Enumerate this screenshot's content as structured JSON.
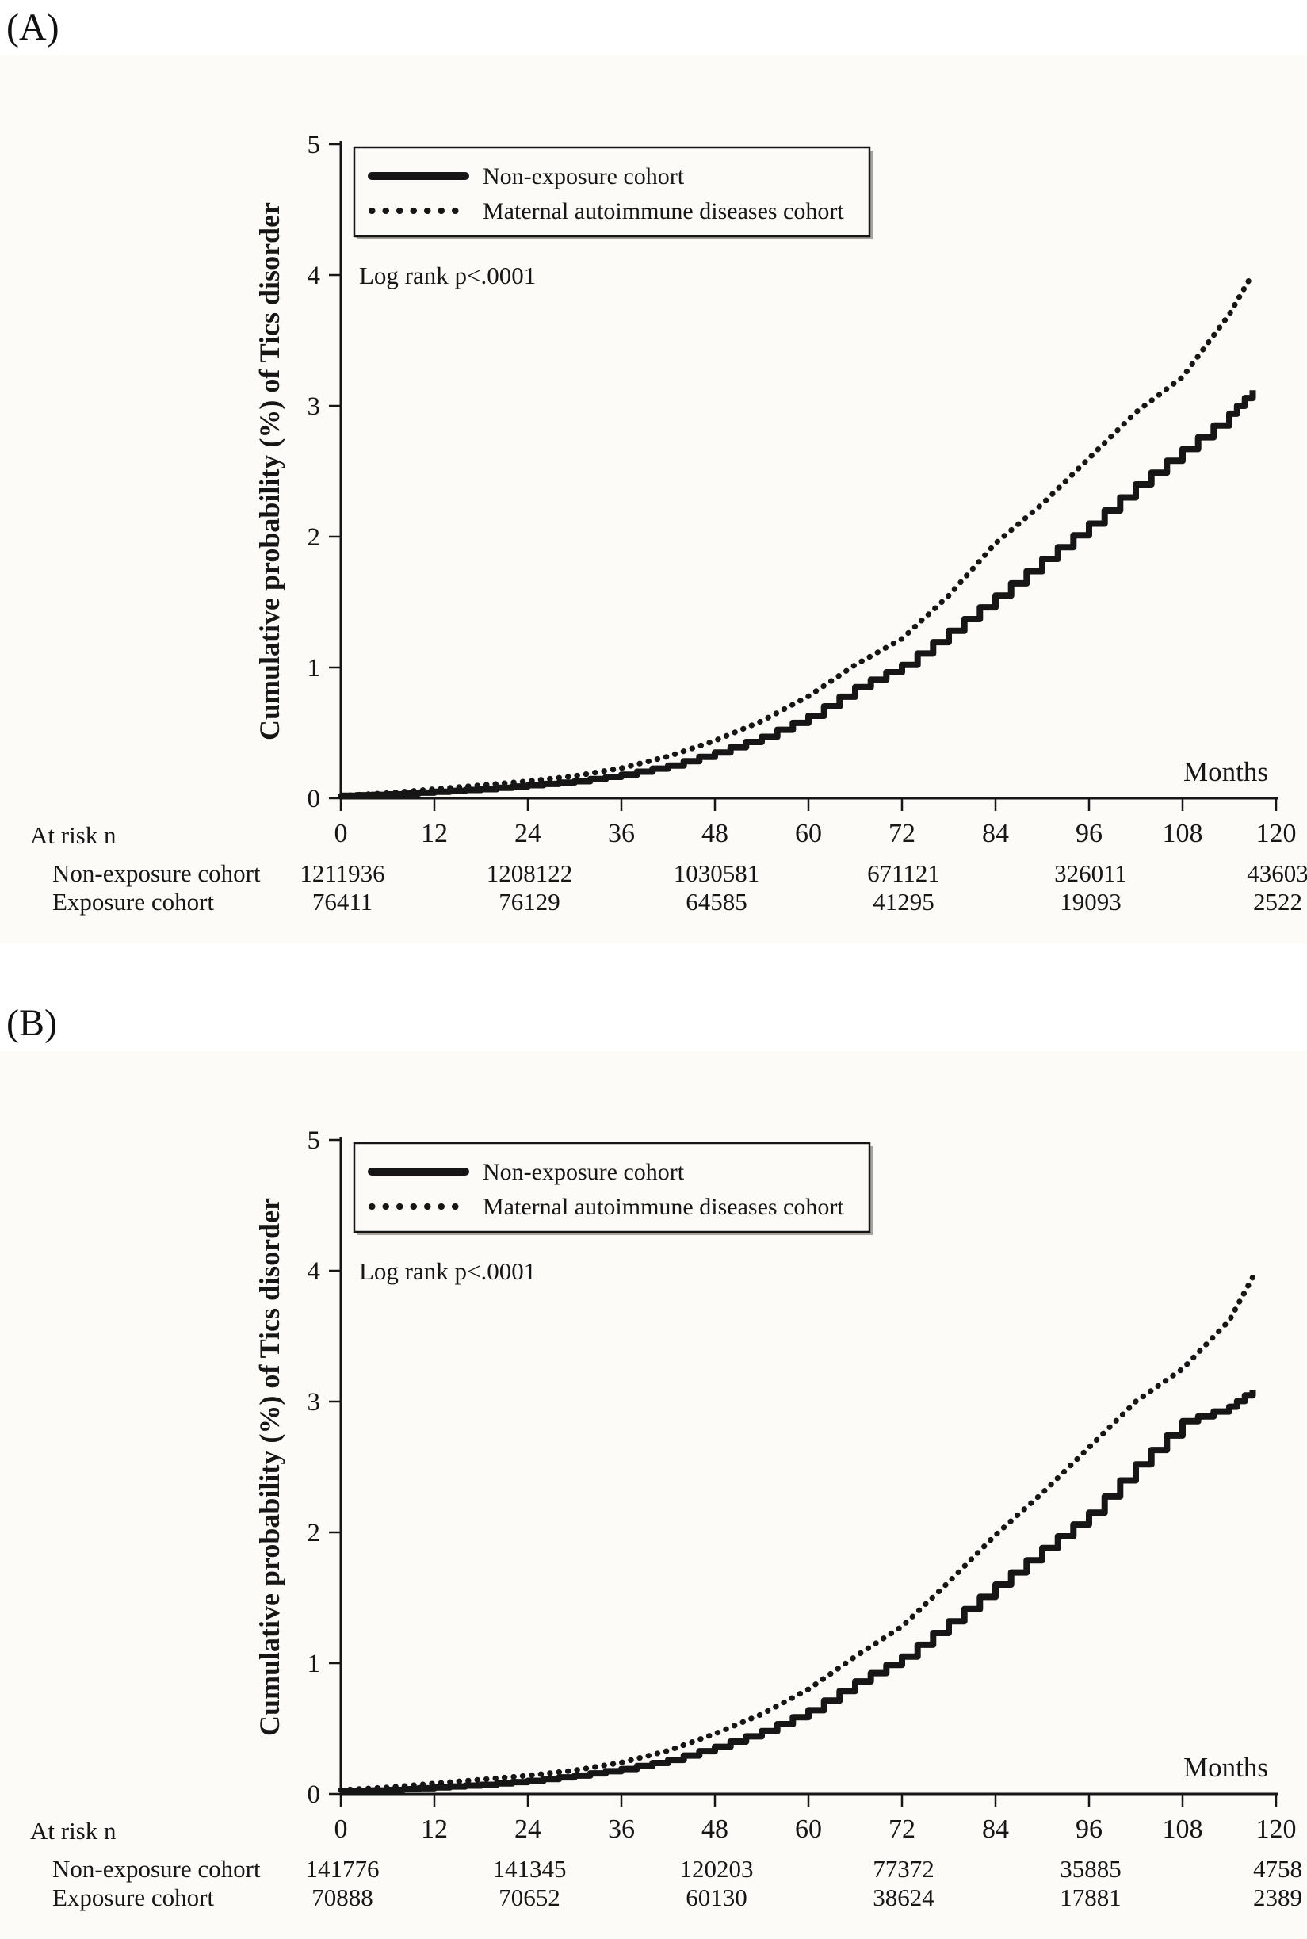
{
  "colors": {
    "ink": "#161616",
    "figure_background": "#fcfbf8",
    "legend_shadow": "#a9a49e"
  },
  "chart_data": [
    {
      "panel_label": "(A)",
      "type": "line",
      "title": "",
      "xlabel": "Months",
      "ylabel": "Cumulative probability (%) of Tics disorder",
      "xlim": [
        0,
        120
      ],
      "ylim": [
        0,
        5
      ],
      "xticks": [
        0,
        12,
        24,
        36,
        48,
        60,
        72,
        84,
        96,
        108,
        120
      ],
      "yticks": [
        0,
        1,
        2,
        3,
        4,
        5
      ],
      "annotation": "Log rank p<.0001",
      "legend_position": "top-left",
      "grid": false,
      "series": [
        {
          "name": "Non-exposure cohort",
          "style": "solid",
          "x": [
            0,
            6,
            12,
            18,
            24,
            30,
            36,
            42,
            48,
            54,
            60,
            66,
            72,
            78,
            84,
            90,
            96,
            102,
            108,
            114,
            117
          ],
          "y": [
            0.02,
            0.03,
            0.05,
            0.07,
            0.1,
            0.13,
            0.18,
            0.25,
            0.35,
            0.47,
            0.63,
            0.85,
            1.02,
            1.28,
            1.55,
            1.83,
            2.1,
            2.4,
            2.67,
            2.94,
            3.12
          ]
        },
        {
          "name": "Maternal autoimmune diseases cohort",
          "style": "dotted",
          "x": [
            0,
            6,
            12,
            18,
            24,
            30,
            36,
            42,
            48,
            54,
            60,
            66,
            72,
            78,
            84,
            90,
            96,
            102,
            108,
            114,
            117
          ],
          "y": [
            0.02,
            0.04,
            0.07,
            0.1,
            0.13,
            0.17,
            0.23,
            0.32,
            0.44,
            0.59,
            0.78,
            1.02,
            1.22,
            1.55,
            1.95,
            2.25,
            2.6,
            2.95,
            3.22,
            3.7,
            4.01
          ]
        }
      ],
      "at_risk": {
        "label": "At risk n",
        "months": [
          0,
          24,
          48,
          72,
          96,
          120
        ],
        "rows": [
          {
            "label": "Non-exposure cohort",
            "values": [
              "1211936",
              "1208122",
              "1030581",
              "671121",
              "326011",
              "43603"
            ]
          },
          {
            "label": "Exposure cohort",
            "values": [
              "76411",
              "76129",
              "64585",
              "41295",
              "19093",
              "2522"
            ]
          }
        ]
      }
    },
    {
      "panel_label": "(B)",
      "type": "line",
      "title": "",
      "xlabel": "Months",
      "ylabel": "Cumulative probability (%) of Tics disorder",
      "xlim": [
        0,
        120
      ],
      "ylim": [
        0,
        5
      ],
      "xticks": [
        0,
        12,
        24,
        36,
        48,
        60,
        72,
        84,
        96,
        108,
        120
      ],
      "yticks": [
        0,
        1,
        2,
        3,
        4,
        5
      ],
      "annotation": "Log rank p<.0001",
      "legend_position": "top-left",
      "grid": false,
      "series": [
        {
          "name": "Non-exposure cohort",
          "style": "solid",
          "x": [
            0,
            6,
            12,
            18,
            24,
            30,
            36,
            42,
            48,
            54,
            60,
            66,
            72,
            78,
            84,
            90,
            96,
            102,
            108,
            114,
            117
          ],
          "y": [
            0.02,
            0.03,
            0.05,
            0.07,
            0.1,
            0.14,
            0.19,
            0.26,
            0.36,
            0.48,
            0.64,
            0.86,
            1.05,
            1.32,
            1.6,
            1.88,
            2.15,
            2.52,
            2.85,
            2.96,
            3.09
          ]
        },
        {
          "name": "Maternal autoimmune diseases cohort",
          "style": "dotted",
          "x": [
            0,
            6,
            12,
            18,
            24,
            30,
            36,
            42,
            48,
            54,
            60,
            66,
            72,
            78,
            84,
            90,
            96,
            102,
            108,
            114,
            117
          ],
          "y": [
            0.03,
            0.05,
            0.08,
            0.11,
            0.14,
            0.18,
            0.24,
            0.33,
            0.46,
            0.61,
            0.8,
            1.05,
            1.28,
            1.62,
            1.98,
            2.3,
            2.65,
            3.0,
            3.25,
            3.62,
            3.95
          ]
        }
      ],
      "at_risk": {
        "label": "At risk n",
        "months": [
          0,
          24,
          48,
          72,
          96,
          120
        ],
        "rows": [
          {
            "label": "Non-exposure cohort",
            "values": [
              "141776",
              "141345",
              "120203",
              "77372",
              "35885",
              "4758"
            ]
          },
          {
            "label": "Exposure cohort",
            "values": [
              "70888",
              "70652",
              "60130",
              "38624",
              "17881",
              "2389"
            ]
          }
        ]
      }
    }
  ]
}
